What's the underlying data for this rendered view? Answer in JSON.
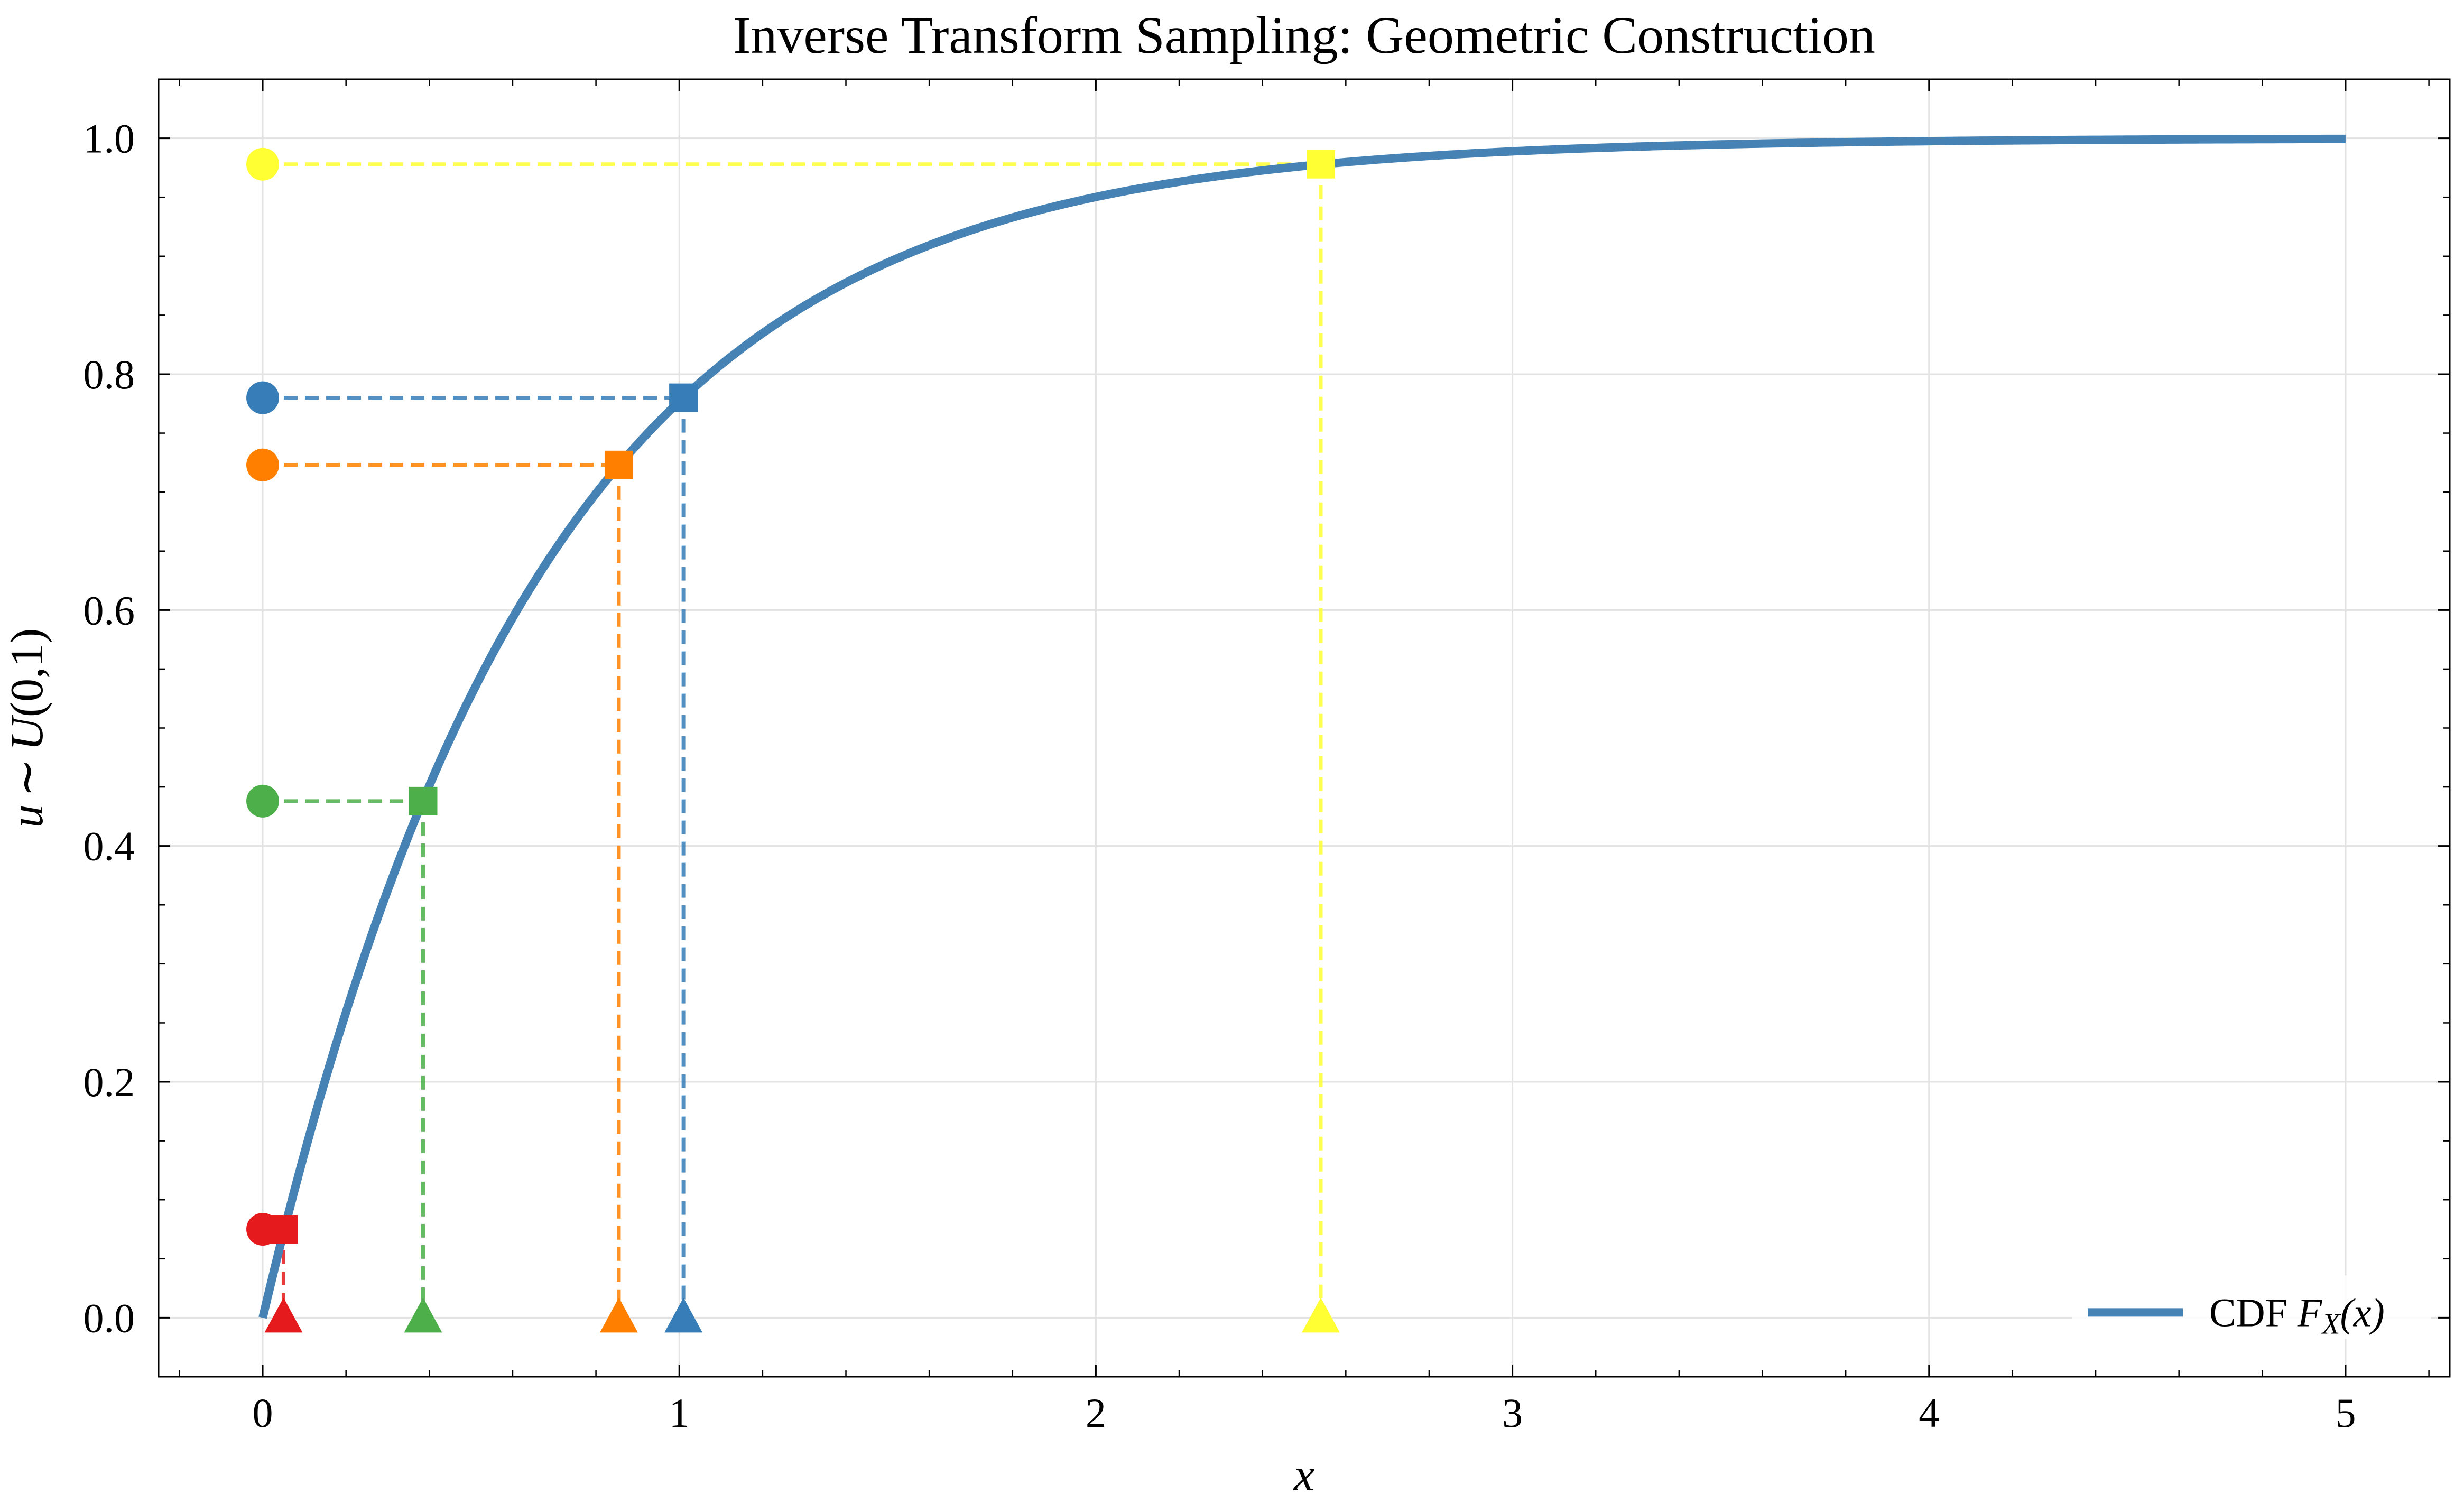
{
  "chart_data": {
    "type": "line",
    "title": "Inverse Transform Sampling: Geometric Construction",
    "xlabel": "x",
    "ylabel": "u ~ U(0,1)",
    "xlim": [
      -0.25,
      5.25
    ],
    "ylim": [
      -0.05,
      1.05
    ],
    "xticks": [
      0,
      1,
      2,
      3,
      4,
      5
    ],
    "xtick_labels": [
      "0",
      "1",
      "2",
      "3",
      "4",
      "5"
    ],
    "yticks": [
      0.0,
      0.2,
      0.4,
      0.6,
      0.8,
      1.0
    ],
    "ytick_labels": [
      "0.0",
      "0.2",
      "0.4",
      "0.6",
      "0.8",
      "1.0"
    ],
    "grid": true,
    "legend_position": "bottom-right",
    "series": [
      {
        "name": "CDF F_X(x)",
        "kind": "line",
        "color": "#4682b4",
        "function": "1 - exp(-1.5 x)",
        "x_range": [
          0,
          5
        ]
      }
    ],
    "samples": [
      {
        "u": 0.075,
        "x": 0.05,
        "color": "#e41a1c"
      },
      {
        "u": 0.438,
        "x": 0.385,
        "color": "#4daf4a"
      },
      {
        "u": 0.723,
        "x": 0.855,
        "color": "#ff7f00"
      },
      {
        "u": 0.78,
        "x": 1.01,
        "color": "#377eb8"
      },
      {
        "u": 0.978,
        "x": 2.54,
        "color": "#ffff33"
      }
    ],
    "markers": {
      "u_on_axis": "circle",
      "point_on_cdf": "square",
      "x_sample": "triangle"
    },
    "legend": {
      "label_prefix": "CDF ",
      "label_math": "F",
      "label_sub": "X",
      "label_suffix": "(x)"
    },
    "ylabel_parts": {
      "u": "u",
      "sim": "∼",
      "U": "U",
      "args": "(0,1)"
    }
  }
}
